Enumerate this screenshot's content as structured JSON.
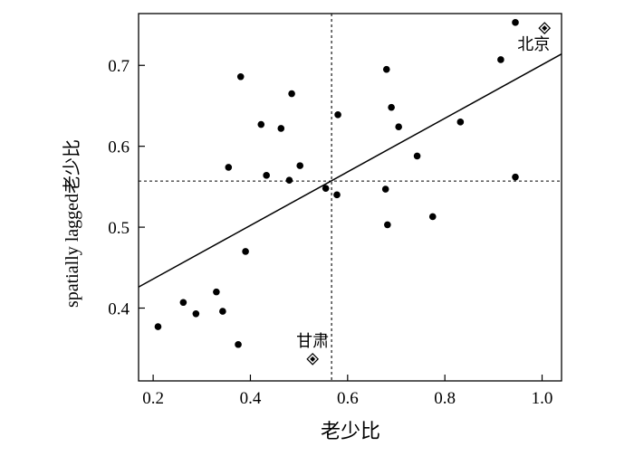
{
  "chart_data": {
    "type": "scatter",
    "xlabel": "老少比",
    "ylabel": "spatially lagged老少比",
    "xlim": [
      0.17,
      1.04
    ],
    "ylim": [
      0.31,
      0.764
    ],
    "xticks": [
      0.2,
      0.4,
      0.6,
      0.8,
      1.0
    ],
    "xtick_labels": [
      "0.2",
      "0.4",
      "0.6",
      "0.8",
      "1.0"
    ],
    "yticks": [
      0.4,
      0.5,
      0.6,
      0.7
    ],
    "ytick_labels": [
      "0.4",
      "0.5",
      "0.6",
      "0.7"
    ],
    "points": [
      [
        0.21,
        0.377
      ],
      [
        0.262,
        0.407
      ],
      [
        0.288,
        0.393
      ],
      [
        0.33,
        0.42
      ],
      [
        0.343,
        0.396
      ],
      [
        0.375,
        0.355
      ],
      [
        0.39,
        0.47
      ],
      [
        0.355,
        0.574
      ],
      [
        0.38,
        0.686
      ],
      [
        0.422,
        0.627
      ],
      [
        0.433,
        0.564
      ],
      [
        0.463,
        0.622
      ],
      [
        0.48,
        0.558
      ],
      [
        0.485,
        0.665
      ],
      [
        0.502,
        0.576
      ],
      [
        0.555,
        0.548
      ],
      [
        0.578,
        0.54
      ],
      [
        0.58,
        0.639
      ],
      [
        0.678,
        0.547
      ],
      [
        0.682,
        0.503
      ],
      [
        0.68,
        0.695
      ],
      [
        0.69,
        0.648
      ],
      [
        0.705,
        0.624
      ],
      [
        0.743,
        0.588
      ],
      [
        0.775,
        0.513
      ],
      [
        0.832,
        0.63
      ],
      [
        0.915,
        0.707
      ],
      [
        0.945,
        0.753
      ],
      [
        0.945,
        0.562
      ]
    ],
    "highlighted": [
      {
        "label": "北京",
        "x": 1.005,
        "y": 0.746
      },
      {
        "label": "甘肃",
        "x": 0.528,
        "y": 0.337
      }
    ],
    "regression_line": {
      "x": [
        0.17,
        1.04
      ],
      "y": [
        0.426,
        0.714
      ]
    },
    "mean_x": 0.567,
    "mean_y": 0.557,
    "grid": false,
    "legend": "none"
  }
}
